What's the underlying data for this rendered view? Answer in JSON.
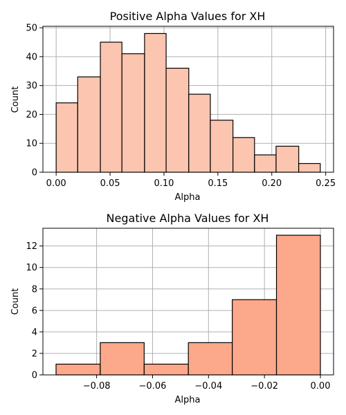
{
  "chart_data": [
    {
      "type": "bar",
      "title": "Positive Alpha Values for XH",
      "xlabel": "Alpha",
      "ylabel": "Count",
      "bin_edges": [
        0.0,
        0.02,
        0.041,
        0.061,
        0.082,
        0.102,
        0.123,
        0.143,
        0.164,
        0.184,
        0.204,
        0.225,
        0.245
      ],
      "values": [
        24,
        33,
        45,
        41,
        48,
        36,
        27,
        18,
        12,
        6,
        9,
        3
      ],
      "xlim": [
        -0.0123,
        0.2573
      ],
      "ylim": [
        0,
        50.5
      ],
      "xticks": [
        0.0,
        0.05,
        0.1,
        0.15,
        0.2,
        0.25
      ],
      "xtick_labels": [
        "0.00",
        "0.05",
        "0.10",
        "0.15",
        "0.20",
        "0.25"
      ],
      "yticks": [
        0,
        10,
        20,
        30,
        40,
        50
      ],
      "ytick_labels": [
        "0",
        "10",
        "20",
        "30",
        "40",
        "50"
      ],
      "grid": true,
      "bar_color": "#fcc5b0",
      "edge_color": "#000000",
      "grid_color": "#b0b0b0"
    },
    {
      "type": "bar",
      "title": "Negative Alpha Values for XH",
      "xlabel": "Alpha",
      "ylabel": "Count",
      "bin_edges": [
        -0.0945,
        -0.0787,
        -0.063,
        -0.0472,
        -0.0315,
        -0.0157,
        0.0
      ],
      "values": [
        1,
        3,
        1,
        3,
        7,
        13
      ],
      "xlim": [
        -0.0992,
        0.0047
      ],
      "ylim": [
        0,
        13.65
      ],
      "xticks": [
        -0.08,
        -0.06,
        -0.04,
        -0.02,
        0.0
      ],
      "xtick_labels": [
        "−0.08",
        "−0.06",
        "−0.04",
        "−0.02",
        "0.00"
      ],
      "yticks": [
        0,
        2,
        4,
        6,
        8,
        10,
        12
      ],
      "ytick_labels": [
        "0",
        "2",
        "4",
        "6",
        "8",
        "10",
        "12"
      ],
      "grid": true,
      "bar_color": "#fca88a",
      "edge_color": "#000000",
      "grid_color": "#b0b0b0"
    }
  ]
}
